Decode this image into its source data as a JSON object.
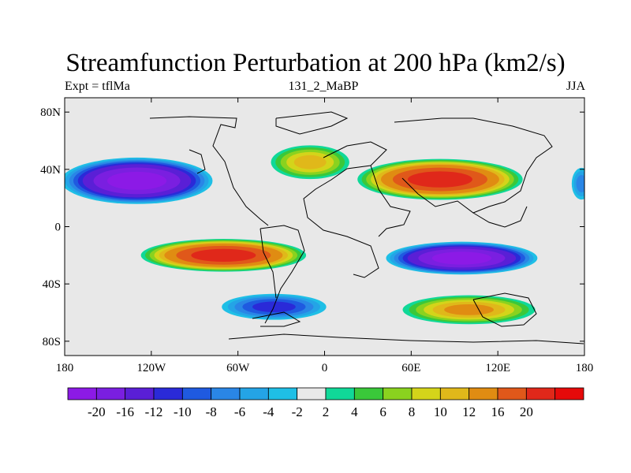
{
  "header": {
    "title": "Streamfunction Perturbation at 200 hPa (km2/s)",
    "left": "Expt = tflMa",
    "center": "131_2_MaBP",
    "right": "JJA"
  },
  "axes": {
    "lon_ticks": [
      {
        "lon": -180,
        "label": "180"
      },
      {
        "lon": -120,
        "label": "120W"
      },
      {
        "lon": -60,
        "label": "60W"
      },
      {
        "lon": 0,
        "label": "0"
      },
      {
        "lon": 60,
        "label": "60E"
      },
      {
        "lon": 120,
        "label": "120E"
      },
      {
        "lon": 180,
        "label": "180"
      }
    ],
    "lat_ticks": [
      {
        "lat": 80,
        "label": "80N"
      },
      {
        "lat": 40,
        "label": "40N"
      },
      {
        "lat": 0,
        "label": "0"
      },
      {
        "lat": -40,
        "label": "40S"
      },
      {
        "lat": -80,
        "label": "80S"
      }
    ],
    "lon_range": [
      -180,
      180
    ],
    "lat_range": [
      -90,
      90
    ]
  },
  "colorbar": {
    "colors": [
      "#8c1ae6",
      "#7a1fe0",
      "#5a1fd6",
      "#2a2ad8",
      "#1f5ae0",
      "#2a86e6",
      "#24a4e6",
      "#1fbfe6",
      "#e8e8e8",
      "#10d898",
      "#3ac83a",
      "#8ad21f",
      "#d4d41a",
      "#e0b81a",
      "#e08c12",
      "#e0581a",
      "#e0281a",
      "#e60a0a"
    ],
    "labels": [
      "-20",
      "-16",
      "-12",
      "-10",
      "-8",
      "-6",
      "-4",
      "-2",
      "2",
      "4",
      "6",
      "8",
      "10",
      "12",
      "16",
      "20"
    ]
  },
  "chart_data": {
    "type": "heatmap",
    "title": "Streamfunction Perturbation at 200 hPa (km2/s)",
    "subtitle": "131_2_MaBP",
    "season": "JJA",
    "experiment": "Expt = tflMa",
    "x_range": [
      -180,
      180
    ],
    "y_range": [
      -90,
      90
    ],
    "contour_levels": [
      -20,
      -16,
      -12,
      -10,
      -8,
      -6,
      -4,
      -2,
      2,
      4,
      6,
      8,
      10,
      12,
      16,
      20
    ],
    "features": [
      {
        "type": "min",
        "lon": -130,
        "lat": 32,
        "value": -22,
        "extent_lon": 110,
        "extent_lat": 34
      },
      {
        "type": "max",
        "lon": 80,
        "lat": 33,
        "value": 22,
        "extent_lon": 120,
        "extent_lat": 30
      },
      {
        "type": "max",
        "lon": -10,
        "lat": 45,
        "value": 10,
        "extent_lon": 60,
        "extent_lat": 26
      },
      {
        "type": "max",
        "lon": -70,
        "lat": -20,
        "value": 22,
        "extent_lon": 120,
        "extent_lat": 24
      },
      {
        "type": "min",
        "lon": 95,
        "lat": -22,
        "value": -22,
        "extent_lon": 110,
        "extent_lat": 24
      },
      {
        "type": "max",
        "lon": 100,
        "lat": -58,
        "value": 12,
        "extent_lon": 100,
        "extent_lat": 22
      },
      {
        "type": "min",
        "lon": -35,
        "lat": -56,
        "value": -10,
        "extent_lon": 80,
        "extent_lat": 20
      },
      {
        "type": "min",
        "lon": 178,
        "lat": 30,
        "value": -6,
        "extent_lon": 16,
        "extent_lat": 26
      }
    ]
  }
}
